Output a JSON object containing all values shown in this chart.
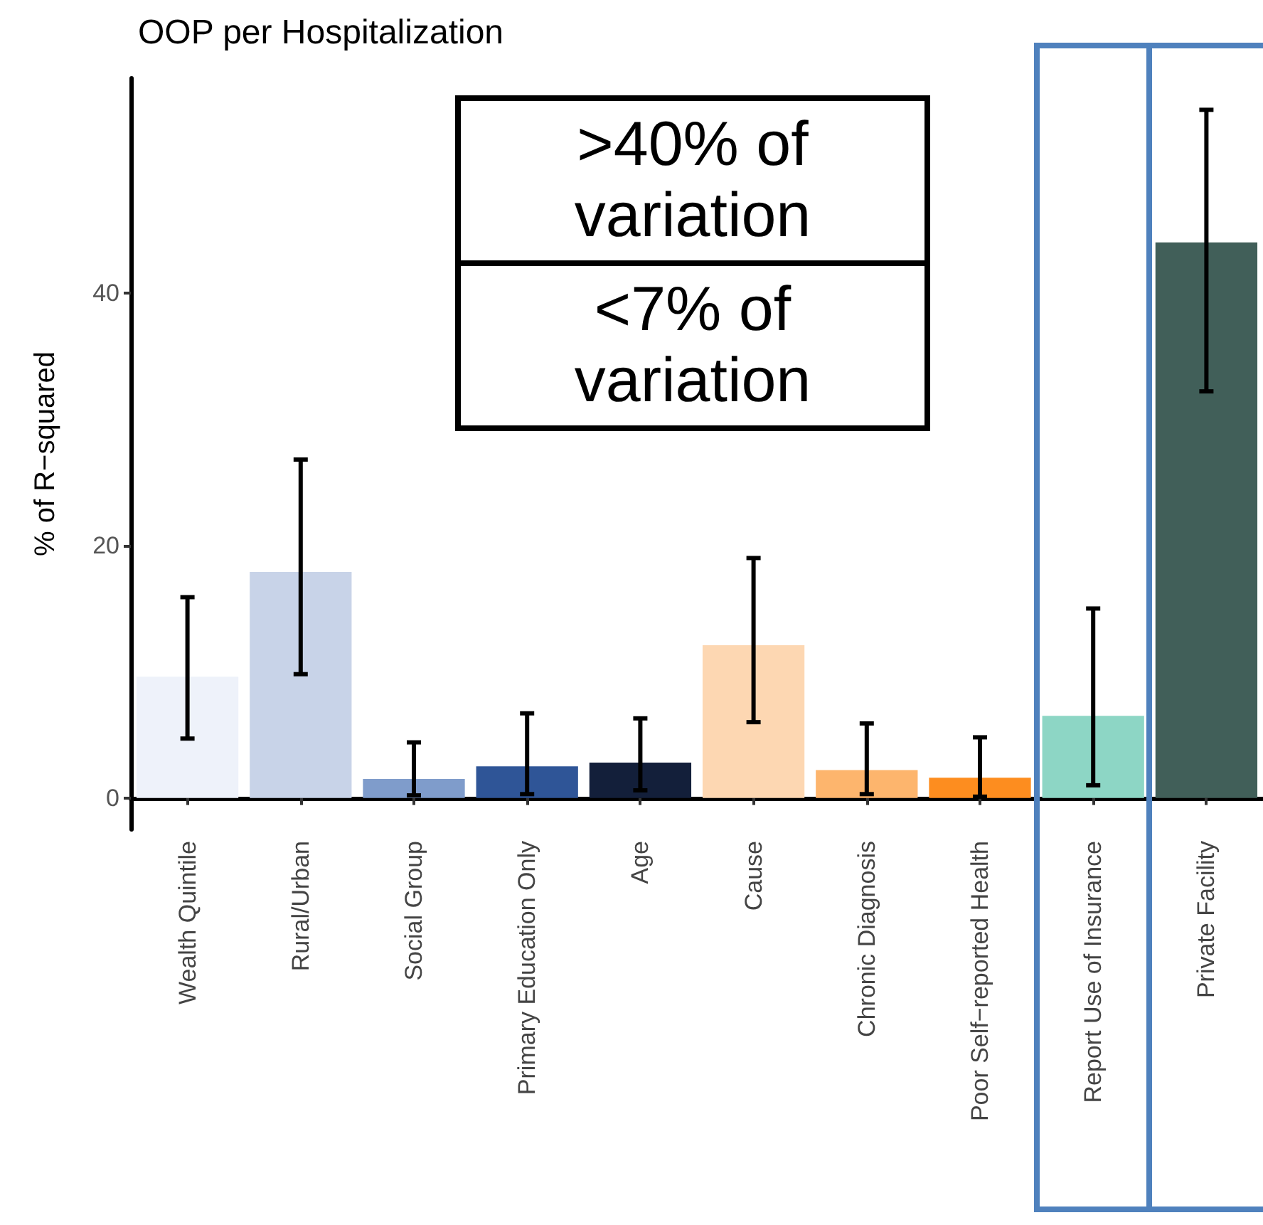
{
  "chart_data": {
    "type": "bar",
    "title": "OOP per Hospitalization",
    "ylabel": "% of R−squared",
    "categories": [
      "Wealth Quintile",
      "Rural/Urban",
      "Social Group",
      "Primary Education Only",
      "Age",
      "Cause",
      "Chronic Diagnosis",
      "Poor Self−reported Health",
      "Report Use of Insurance",
      "Private Facility"
    ],
    "values": [
      9.6,
      17.9,
      1.5,
      2.5,
      2.8,
      12.1,
      2.2,
      1.6,
      6.5,
      44
    ],
    "colors": [
      "#eef2fa",
      "#c8d3e8",
      "#7f9ccb",
      "#2f5597",
      "#131f3a",
      "#fdd7b2",
      "#fdb56d",
      "#fd8d1f",
      "#8dd6c5",
      "#415f59"
    ],
    "errors": [
      [
        4.7,
        15.9
      ],
      [
        9.8,
        26.8
      ],
      [
        0.2,
        4.4
      ],
      [
        0.3,
        6.7
      ],
      [
        0.6,
        6.3
      ],
      [
        6,
        19
      ],
      [
        0.3,
        5.9
      ],
      [
        0.1,
        4.8
      ],
      [
        1,
        15
      ],
      [
        32.2,
        54.5
      ]
    ],
    "ylim": [
      -2.5,
      57
    ],
    "yticks": [
      0,
      20,
      40
    ],
    "grid": false,
    "annotations": [
      ">40% of\nvariation",
      "<7% of\nvariation"
    ]
  }
}
